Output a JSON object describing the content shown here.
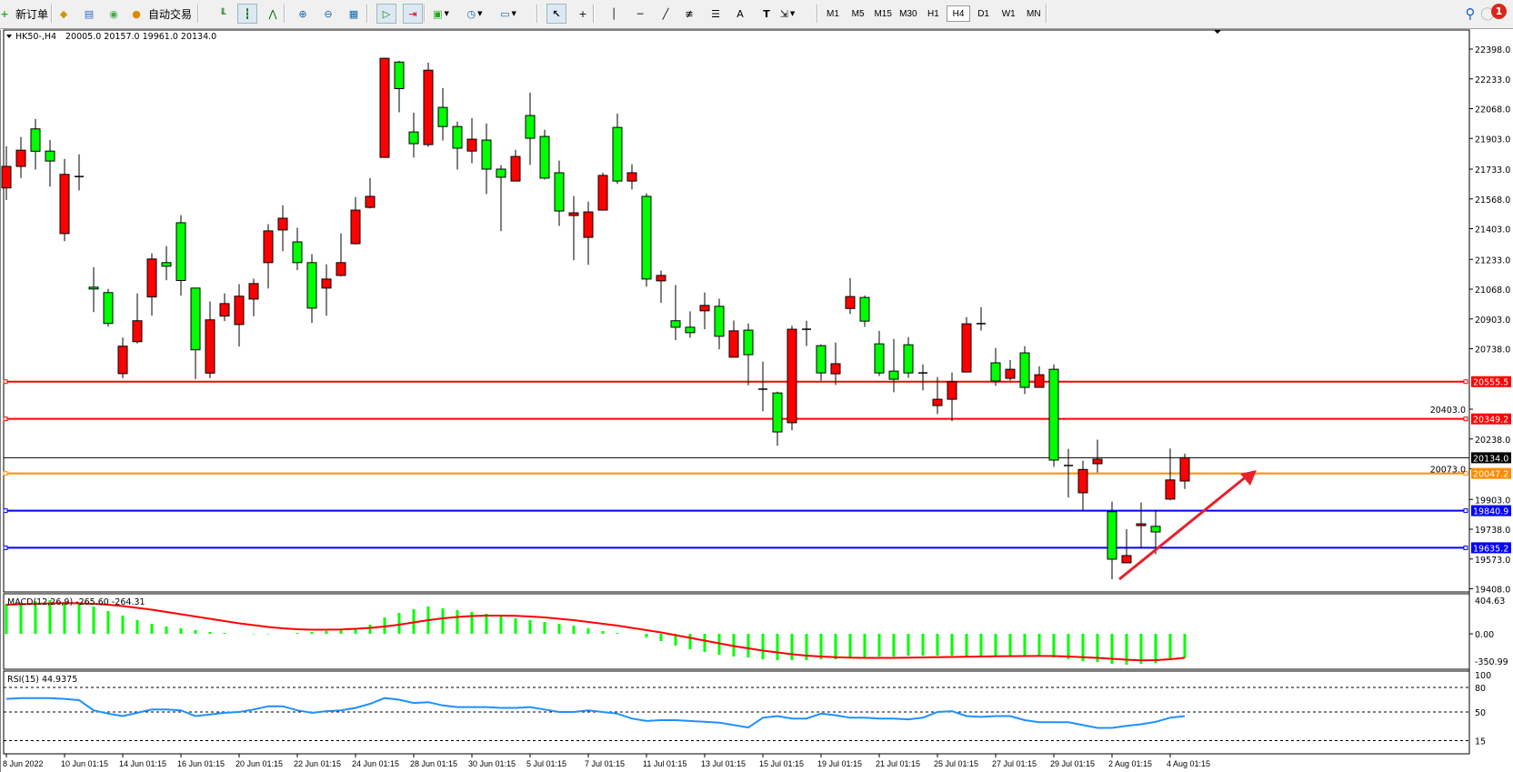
{
  "toolbar": {
    "new_order_label": "新订单",
    "auto_trading_label": "自动交易",
    "icons": [
      "new-order-icon",
      "gold-icon",
      "market-watch-icon",
      "signals-icon",
      "auto-trading-icon",
      "bar-chart-icon",
      "candlestick-icon",
      "line-chart-icon",
      "zoom-in-icon",
      "zoom-out-icon",
      "tile-windows-icon",
      "auto-scroll-icon",
      "chart-shift-icon",
      "new-chart-icon",
      "periods-icon",
      "templates-icon",
      "cursor-icon",
      "crosshair-icon",
      "vertical-line-icon",
      "horizontal-line-icon",
      "trendline-icon",
      "fibo-channel-icon",
      "fibo-icon",
      "text-icon",
      "text-label-icon",
      "arrows-icon"
    ],
    "text_tool_label": "A",
    "timeframes": [
      "M1",
      "M5",
      "M15",
      "M30",
      "H1",
      "H4",
      "D1",
      "W1",
      "MN"
    ],
    "active_timeframe": "H4",
    "notification_count": "1"
  },
  "chart": {
    "symbol": "HK50-,H4",
    "ohlc_text": "20005.0 20157.0 19961.0 20134.0",
    "colors": {
      "up": "#ff0000",
      "down": "#00ff00",
      "outline": "#000000"
    },
    "price_ticks": [
      "22398.0",
      "22233.0",
      "22068.0",
      "21903.0",
      "21733.0",
      "21568.0",
      "21403.0",
      "21233.0",
      "21068.0",
      "20903.0",
      "20738.0",
      "20403.0",
      "20238.0",
      "20073.0",
      "19903.0",
      "19738.0",
      "19573.0",
      "19408.0"
    ],
    "levels": [
      {
        "price": 20555.5,
        "label": "20555.5",
        "color": "#ff0000"
      },
      {
        "price": 20349.2,
        "label": "20349.2",
        "color": "#ff0000"
      },
      {
        "price": 20047.2,
        "label": "20047.2",
        "color": "#ff8c00"
      },
      {
        "price": 19840.9,
        "label": "19840.9",
        "color": "#0000ff"
      },
      {
        "price": 19635.2,
        "label": "19635.2",
        "color": "#0000ff"
      }
    ],
    "bid": {
      "price": 20134.0,
      "label": "20134.0"
    },
    "arrow_color": "#e8202a",
    "candles": [
      [
        21629,
        21860,
        21562,
        21748
      ],
      [
        21748,
        21911,
        21684,
        21838
      ],
      [
        21956,
        22011,
        21731,
        21832
      ],
      [
        21833,
        21894,
        21636,
        21778
      ],
      [
        21376,
        21790,
        21334,
        21704
      ],
      [
        21690,
        21815,
        21615,
        21692
      ],
      [
        21079,
        21189,
        20941,
        21069
      ],
      [
        21049,
        21069,
        20861,
        20878
      ],
      [
        20600,
        20800,
        20575,
        20752
      ],
      [
        20777,
        21045,
        20767,
        20893
      ],
      [
        21025,
        21267,
        20921,
        21235
      ],
      [
        21215,
        21307,
        21117,
        21195
      ],
      [
        21436,
        21478,
        21033,
        21116
      ],
      [
        21074,
        21074,
        20570,
        20732
      ],
      [
        20603,
        21000,
        20575,
        20898
      ],
      [
        20919,
        21045,
        20891,
        20988
      ],
      [
        20872,
        21096,
        20750,
        21029
      ],
      [
        21013,
        21126,
        20918,
        21099
      ],
      [
        21215,
        21428,
        21072,
        21391
      ],
      [
        21396,
        21533,
        21278,
        21461
      ],
      [
        21330,
        21408,
        21173,
        21215
      ],
      [
        21215,
        21262,
        20881,
        20963
      ],
      [
        21074,
        21206,
        20921,
        21124
      ],
      [
        21144,
        21377,
        21139,
        21215
      ],
      [
        21320,
        21579,
        21315,
        21506
      ],
      [
        21521,
        21684,
        21515,
        21582
      ],
      [
        21798,
        22350,
        21798,
        22347
      ],
      [
        22326,
        22333,
        22048,
        22179
      ],
      [
        21939,
        22046,
        21797,
        21874
      ],
      [
        21869,
        22323,
        21857,
        22281
      ],
      [
        22075,
        22182,
        21892,
        21969
      ],
      [
        21969,
        21996,
        21731,
        21849
      ],
      [
        21833,
        22016,
        21766,
        21899
      ],
      [
        21894,
        21986,
        21595,
        21733
      ],
      [
        21733,
        21755,
        21389,
        21688
      ],
      [
        21667,
        21840,
        21665,
        21803
      ],
      [
        22030,
        22157,
        21756,
        21904
      ],
      [
        21914,
        21951,
        21676,
        21683
      ],
      [
        21713,
        21780,
        21419,
        21501
      ],
      [
        21476,
        21584,
        21228,
        21491
      ],
      [
        21355,
        21553,
        21203,
        21496
      ],
      [
        21506,
        21713,
        21506,
        21698
      ],
      [
        21964,
        22041,
        21651,
        21667
      ],
      [
        21667,
        21760,
        21620,
        21713
      ],
      [
        21582,
        21599,
        21082,
        21124
      ],
      [
        21114,
        21171,
        20992,
        21144
      ],
      [
        20893,
        21091,
        20785,
        20857
      ],
      [
        20857,
        20945,
        20799,
        20827
      ],
      [
        20948,
        21050,
        20846,
        20978
      ],
      [
        20973,
        21015,
        20735,
        20807
      ],
      [
        20691,
        20894,
        20690,
        20837
      ],
      [
        20841,
        20878,
        20535,
        20705
      ],
      [
        20514,
        20666,
        20391,
        20512
      ],
      [
        20493,
        20500,
        20200,
        20277
      ],
      [
        20328,
        20866,
        20286,
        20846
      ],
      [
        20844,
        20893,
        20753,
        20846
      ],
      [
        20755,
        20762,
        20561,
        20604
      ],
      [
        20599,
        20772,
        20537,
        20655
      ],
      [
        20961,
        21129,
        20930,
        21027
      ],
      [
        21022,
        21033,
        20859,
        20891
      ],
      [
        20765,
        20837,
        20587,
        20604
      ],
      [
        20614,
        20792,
        20497,
        20569
      ],
      [
        20760,
        20802,
        20577,
        20604
      ],
      [
        20604,
        20651,
        20507,
        20602
      ],
      [
        20423,
        20581,
        20376,
        20458
      ],
      [
        20458,
        20606,
        20336,
        20555
      ],
      [
        20609,
        20913,
        20609,
        20876
      ],
      [
        20876,
        20968,
        20839,
        20877
      ],
      [
        20660,
        20742,
        20532,
        20559
      ],
      [
        20574,
        20676,
        20562,
        20624
      ],
      [
        20715,
        20752,
        20487,
        20524
      ],
      [
        20524,
        20641,
        20522,
        20594
      ],
      [
        20624,
        20651,
        20084,
        20121
      ],
      [
        20091,
        20183,
        19914,
        20089
      ],
      [
        19940,
        20118,
        19843,
        20069
      ],
      [
        20101,
        20234,
        20053,
        20126
      ],
      [
        19835,
        19891,
        19461,
        19572
      ],
      [
        19552,
        19738,
        19552,
        19592
      ],
      [
        19759,
        19886,
        19633,
        19768
      ],
      [
        19754,
        19846,
        19600,
        19723
      ],
      [
        19905,
        20185,
        19898,
        20011
      ],
      [
        20005,
        20157,
        19961,
        20134
      ]
    ],
    "time_labels": [
      "8 Jun 2022",
      "10 Jun 01:15",
      "14 Jun 01:15",
      "16 Jun 01:15",
      "20 Jun 01:15",
      "22 Jun 01:15",
      "24 Jun 01:15",
      "28 Jun 01:15",
      "30 Jun 01:15",
      "5 Jul 01:15",
      "7 Jul 01:15",
      "11 Jul 01:15",
      "13 Jul 01:15",
      "15 Jul 01:15",
      "19 Jul 01:15",
      "21 Jul 01:15",
      "25 Jul 01:15",
      "27 Jul 01:15",
      "29 Jul 01:15",
      "2 Aug 01:15",
      "4 Aug 01:15"
    ]
  },
  "macd": {
    "label": "MACD(12,26,9) -265.60 -264.31",
    "max_label": "404.63",
    "zero_label": "0.00",
    "min_label": "-350.99",
    "hist_color": "#00ff00",
    "signal_color": "#ff0000",
    "main": [
      330,
      340,
      360,
      370,
      350,
      330,
      300,
      250,
      200,
      150,
      110,
      80,
      60,
      40,
      20,
      10,
      0,
      -5,
      -5,
      0,
      10,
      20,
      30,
      40,
      60,
      100,
      180,
      230,
      270,
      300,
      280,
      260,
      240,
      220,
      200,
      170,
      150,
      130,
      110,
      90,
      60,
      30,
      10,
      0,
      -40,
      -80,
      -130,
      -170,
      -200,
      -230,
      -250,
      -260,
      -280,
      -290,
      -290,
      -290,
      -280,
      -280,
      -270,
      -260,
      -250,
      -250,
      -240,
      -240,
      -240,
      -240,
      -250,
      -240,
      -240,
      -240,
      -240,
      -240,
      -260,
      -280,
      -300,
      -310,
      -330,
      -340,
      -330,
      -320,
      -290,
      -265.6
    ],
    "signal": [
      320,
      325,
      330,
      335,
      337,
      335,
      330,
      320,
      305,
      285,
      265,
      240,
      215,
      190,
      165,
      140,
      115,
      95,
      75,
      60,
      50,
      45,
      45,
      48,
      55,
      65,
      80,
      100,
      125,
      150,
      170,
      185,
      195,
      200,
      200,
      198,
      190,
      180,
      165,
      150,
      130,
      110,
      90,
      65,
      40,
      15,
      -15,
      -45,
      -75,
      -105,
      -135,
      -160,
      -185,
      -205,
      -225,
      -240,
      -250,
      -258,
      -262,
      -265,
      -265,
      -265,
      -263,
      -260,
      -258,
      -255,
      -252,
      -250,
      -248,
      -246,
      -245,
      -244,
      -245,
      -250,
      -258,
      -265,
      -275,
      -285,
      -292,
      -290,
      -280,
      -264.31
    ]
  },
  "rsi": {
    "label": "RSI(15) 44.9375",
    "levels": [
      "100",
      "80",
      "50",
      "15"
    ],
    "color": "#1e90ff",
    "values": [
      66,
      67,
      67,
      67,
      66,
      64.5,
      52,
      48,
      45,
      49,
      53,
      53,
      52,
      45,
      47,
      49,
      50,
      53,
      57,
      57,
      52,
      49,
      51,
      52,
      55,
      60,
      67,
      65,
      61,
      62,
      58,
      56,
      56,
      56,
      55,
      55,
      56,
      53,
      50,
      50,
      52,
      50,
      48,
      42,
      39,
      40,
      40,
      39,
      38,
      37,
      34,
      31,
      43,
      45,
      42,
      42,
      48,
      46,
      43,
      43,
      42,
      42,
      41,
      43,
      50,
      51,
      45,
      44,
      45,
      45,
      40,
      37.5,
      37.5,
      37.5,
      34,
      30.6,
      30.6,
      33,
      35,
      38,
      43,
      44.94
    ]
  }
}
